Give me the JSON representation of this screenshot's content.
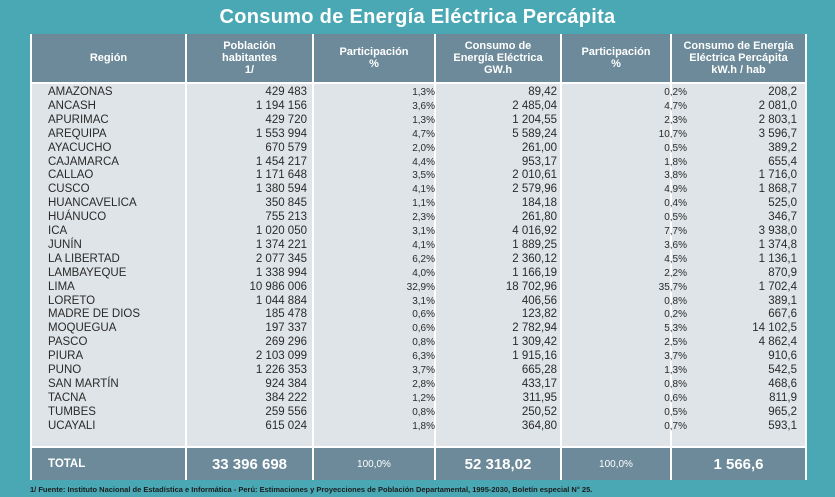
{
  "title": "Consumo de Energía Eléctrica Percápita",
  "headers": {
    "region": "Región",
    "poblacion": [
      "Población",
      "habitantes",
      "1/"
    ],
    "participacion1": [
      "Participación",
      "%"
    ],
    "consumo": [
      "Consumo de",
      "Energía Eléctrica",
      "GW.h"
    ],
    "participacion2": [
      "Participación",
      "%"
    ],
    "percapita": [
      "Consumo de Energía",
      "Eléctrica Percápita",
      "kW.h / hab"
    ]
  },
  "rows": [
    [
      "AMAZONAS",
      "429 483",
      "1,3%",
      "89,42",
      "0,2%",
      "208,2"
    ],
    [
      "ANCASH",
      "1 194 156",
      "3,6%",
      "2 485,04",
      "4,7%",
      "2 081,0"
    ],
    [
      "APURIMAC",
      "429 720",
      "1,3%",
      "1 204,55",
      "2,3%",
      "2 803,1"
    ],
    [
      "AREQUIPA",
      "1 553 994",
      "4,7%",
      "5 589,24",
      "10,7%",
      "3 596,7"
    ],
    [
      "AYACUCHO",
      "670 579",
      "2,0%",
      "261,00",
      "0,5%",
      "389,2"
    ],
    [
      "CAJAMARCA",
      "1 454 217",
      "4,4%",
      "953,17",
      "1,8%",
      "655,4"
    ],
    [
      "CALLAO",
      "1 171 648",
      "3,5%",
      "2 010,61",
      "3,8%",
      "1 716,0"
    ],
    [
      "CUSCO",
      "1 380 594",
      "4,1%",
      "2 579,96",
      "4,9%",
      "1 868,7"
    ],
    [
      "HUANCAVELICA",
      "350 845",
      "1,1%",
      "184,18",
      "0,4%",
      "525,0"
    ],
    [
      "HUÁNUCO",
      "755 213",
      "2,3%",
      "261,80",
      "0,5%",
      "346,7"
    ],
    [
      "ICA",
      "1 020 050",
      "3,1%",
      "4 016,92",
      "7,7%",
      "3 938,0"
    ],
    [
      "JUNÍN",
      "1 374 221",
      "4,1%",
      "1 889,25",
      "3,6%",
      "1 374,8"
    ],
    [
      "LA LIBERTAD",
      "2 077 345",
      "6,2%",
      "2 360,12",
      "4,5%",
      "1 136,1"
    ],
    [
      "LAMBAYEQUE",
      "1 338 994",
      "4,0%",
      "1 166,19",
      "2,2%",
      "870,9"
    ],
    [
      "LIMA",
      "10 986 006",
      "32,9%",
      "18 702,96",
      "35,7%",
      "1 702,4"
    ],
    [
      "LORETO",
      "1 044 884",
      "3,1%",
      "406,56",
      "0,8%",
      "389,1"
    ],
    [
      "MADRE DE DIOS",
      "185 478",
      "0,6%",
      "123,82",
      "0,2%",
      "667,6"
    ],
    [
      "MOQUEGUA",
      "197 337",
      "0,6%",
      "2 782,94",
      "5,3%",
      "14 102,5"
    ],
    [
      "PASCO",
      "269 296",
      "0,8%",
      "1 309,42",
      "2,5%",
      "4 862,4"
    ],
    [
      "PIURA",
      "2 103 099",
      "6,3%",
      "1 915,16",
      "3,7%",
      "910,6"
    ],
    [
      "PUNO",
      "1 226 353",
      "3,7%",
      "665,28",
      "1,3%",
      "542,5"
    ],
    [
      "SAN MARTÍN",
      "924 384",
      "2,8%",
      "433,17",
      "0,8%",
      "468,6"
    ],
    [
      "TACNA",
      "384 222",
      "1,2%",
      "311,95",
      "0,6%",
      "811,9"
    ],
    [
      "TUMBES",
      "259 556",
      "0,8%",
      "250,52",
      "0,5%",
      "965,2"
    ],
    [
      "UCAYALI",
      "615 024",
      "1,8%",
      "364,80",
      "0,7%",
      "593,1"
    ]
  ],
  "total": [
    "TOTAL",
    "33 396 698",
    "100,0%",
    "52 318,02",
    "100,0%",
    "1 566,6"
  ],
  "footer": "1/ Fuente: Instituto Nacional de Estadística e Informática - Perú: Estimaciones y Proyecciones de Población Departamental, 1995-2030, Boletín especial N° 25."
}
